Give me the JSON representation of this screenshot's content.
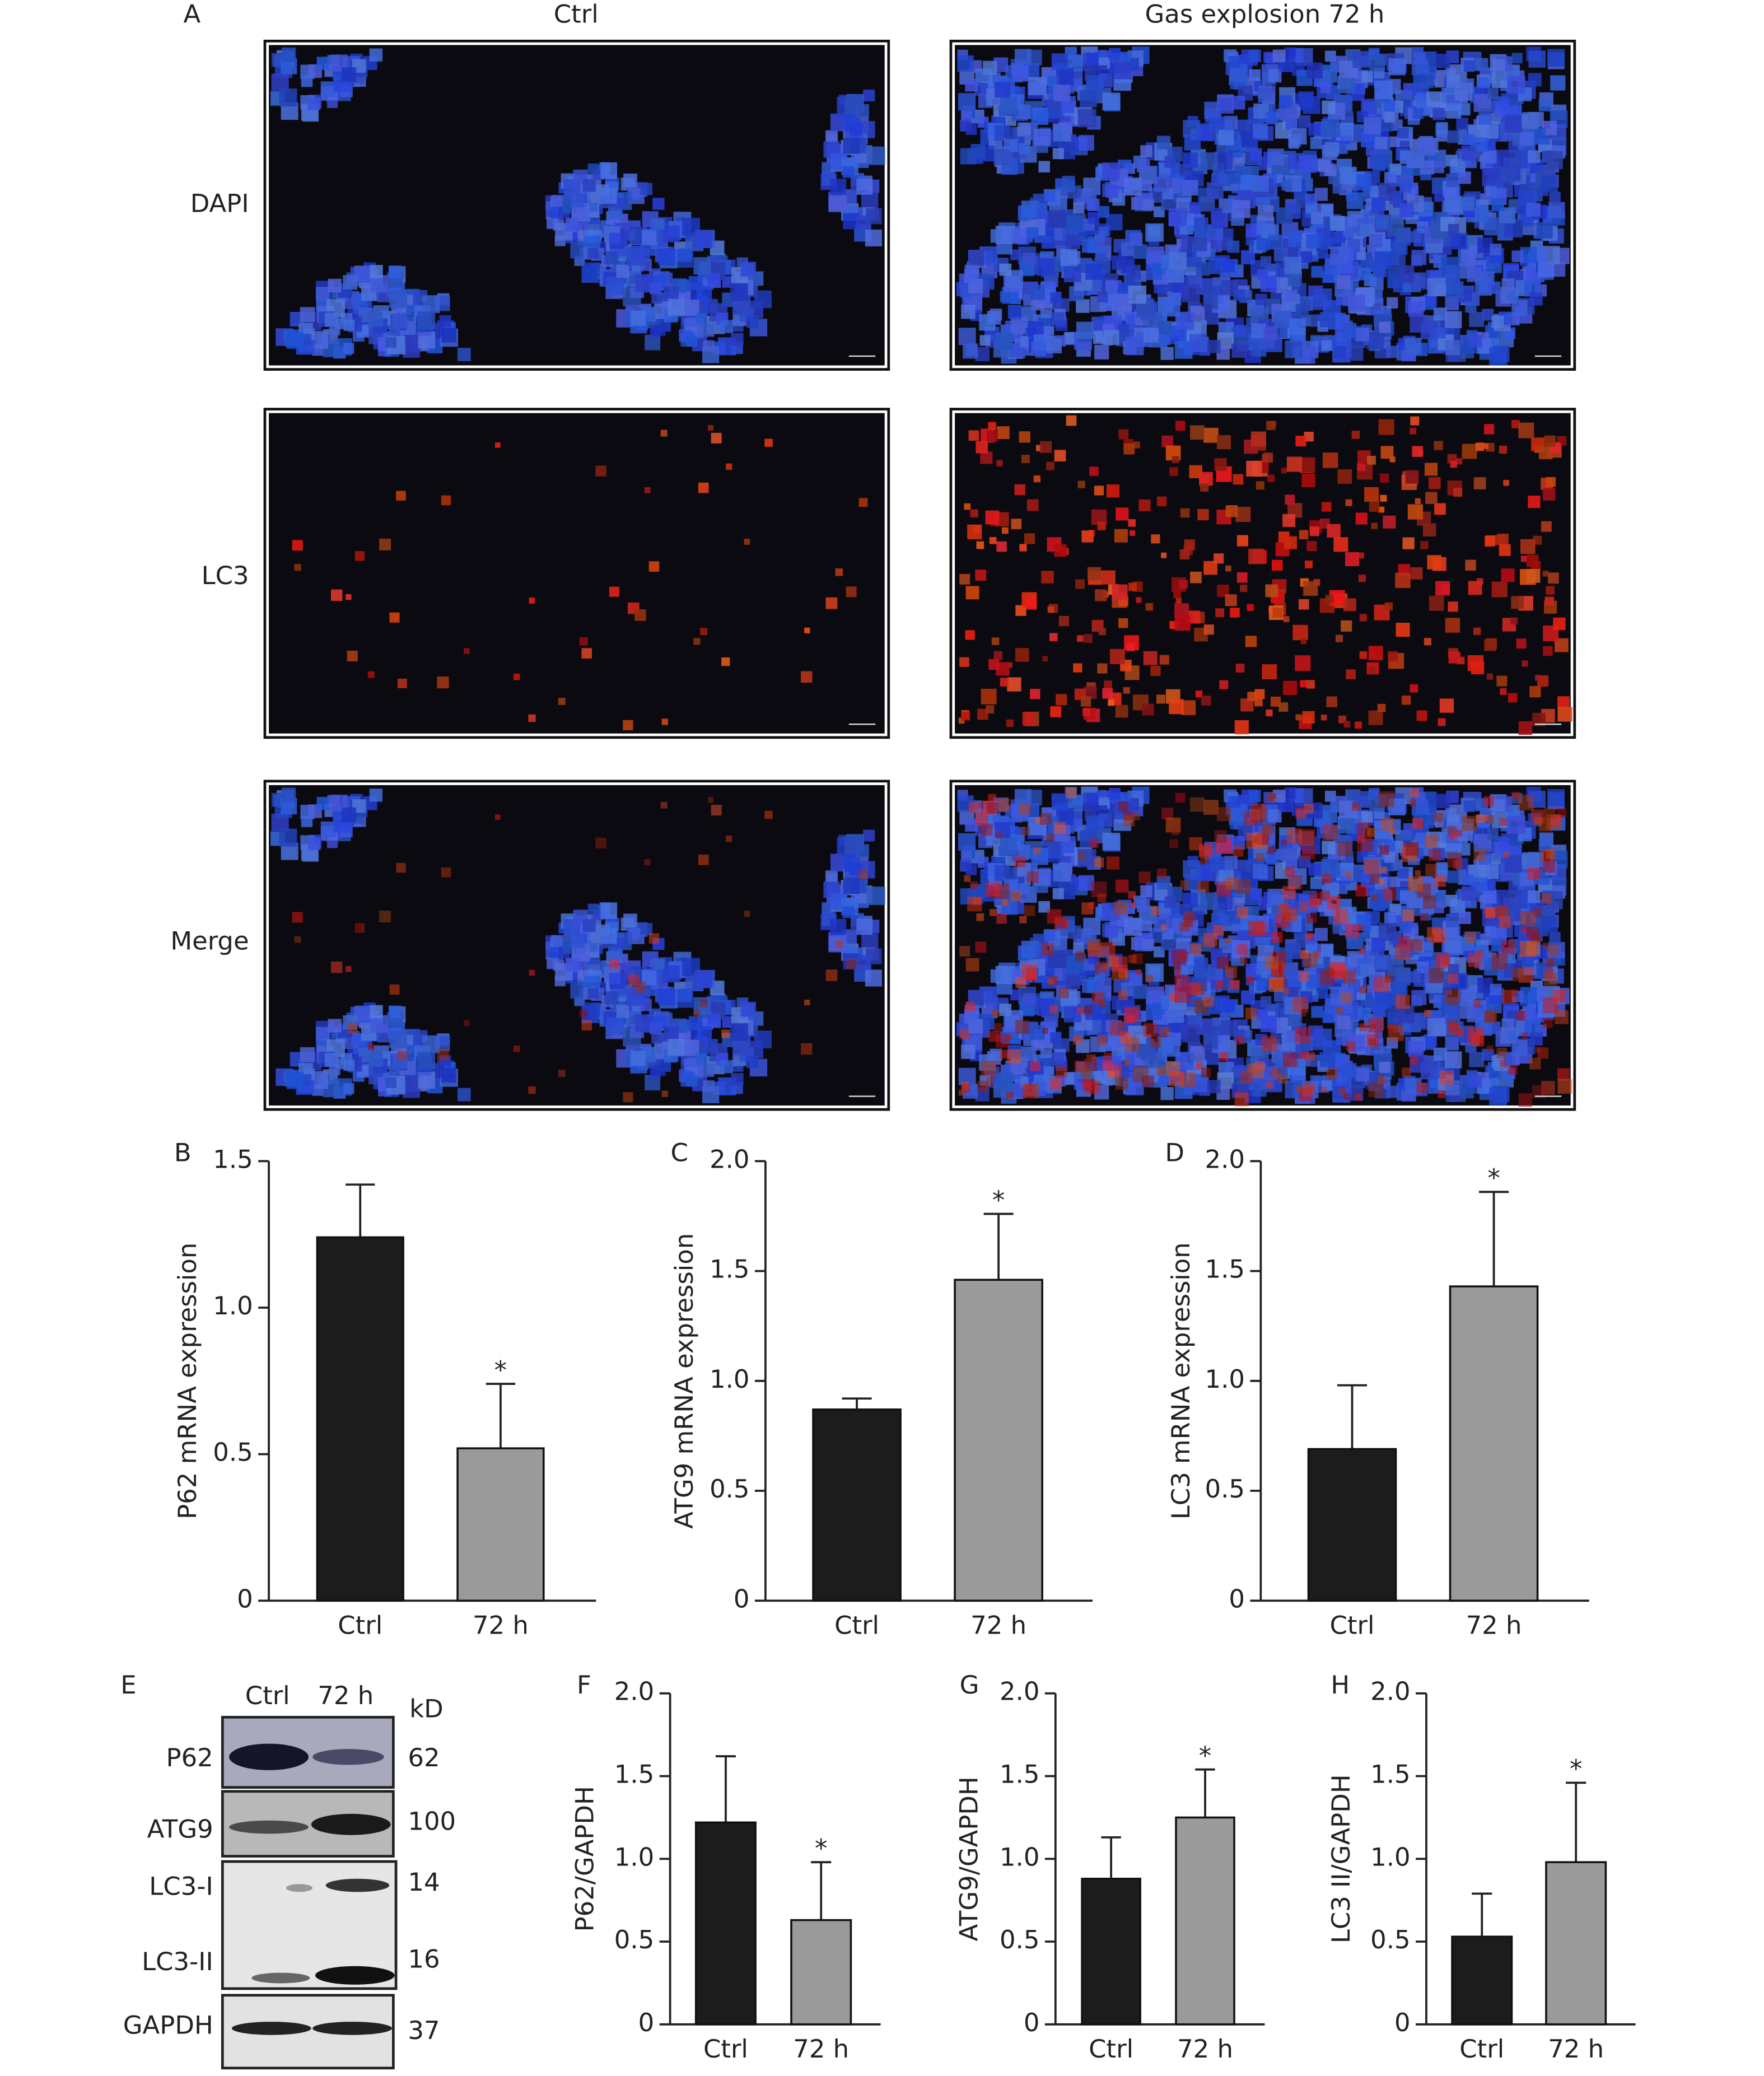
{
  "panel_a": {
    "label": "A",
    "columns": [
      "Ctrl",
      "Gas explosion 72 h"
    ],
    "rows": [
      "DAPI",
      "LC3",
      "Merge"
    ]
  },
  "panel_e": {
    "label": "E",
    "lanes": [
      "Ctrl",
      "72 h"
    ],
    "unit": "kD",
    "bands": [
      {
        "name": "P62",
        "size": 62
      },
      {
        "name": "ATG9",
        "size": 100
      },
      {
        "name": "LC3-I",
        "size": 14
      },
      {
        "name": "LC3-II",
        "size": 16
      },
      {
        "name": "GAPDH",
        "size": 37
      }
    ]
  },
  "chart_data": [
    {
      "type": "bar",
      "panel": "B",
      "ylabel": "P62 mRNA expression",
      "categories": [
        "Ctrl",
        "72 h"
      ],
      "values": [
        1.24,
        0.52
      ],
      "errors": [
        0.18,
        0.22
      ],
      "colors": [
        "#1c1c1c",
        "#9a9a9a"
      ],
      "ylim": [
        0,
        1.5
      ],
      "yticks": [
        0,
        0.5,
        {
          "value": 1,
          "label": "1.0"
        },
        1.5
      ],
      "annotations": [
        {
          "index": 1,
          "text": "*"
        }
      ]
    },
    {
      "type": "bar",
      "panel": "C",
      "ylabel": "ATG9 mRNA expression",
      "categories": [
        "Ctrl",
        "72 h"
      ],
      "values": [
        0.87,
        1.46
      ],
      "errors": [
        0.05,
        0.3
      ],
      "colors": [
        "#1c1c1c",
        "#9a9a9a"
      ],
      "ylim": [
        0,
        2
      ],
      "yticks": [
        0,
        0.5,
        {
          "value": 1,
          "label": "1.0"
        },
        1.5,
        {
          "value": 2,
          "label": "2.0"
        }
      ],
      "annotations": [
        {
          "index": 1,
          "text": "*"
        }
      ]
    },
    {
      "type": "bar",
      "panel": "D",
      "ylabel": "LC3 mRNA expression",
      "categories": [
        "Ctrl",
        "72 h"
      ],
      "values": [
        0.69,
        1.43
      ],
      "errors": [
        0.29,
        0.43
      ],
      "colors": [
        "#1c1c1c",
        "#9a9a9a"
      ],
      "ylim": [
        0,
        2
      ],
      "yticks": [
        0,
        0.5,
        {
          "value": 1,
          "label": "1.0"
        },
        1.5,
        {
          "value": 2,
          "label": "2.0"
        }
      ],
      "annotations": [
        {
          "index": 1,
          "text": "*"
        }
      ]
    },
    {
      "type": "bar",
      "panel": "F",
      "ylabel": "P62/GAPDH",
      "categories": [
        "Ctrl",
        "72 h"
      ],
      "values": [
        1.22,
        0.63
      ],
      "errors": [
        0.4,
        0.35
      ],
      "colors": [
        "#1c1c1c",
        "#9a9a9a"
      ],
      "ylim": [
        0,
        2
      ],
      "yticks": [
        0,
        0.5,
        {
          "value": 1,
          "label": "1.0"
        },
        1.5,
        {
          "value": 2,
          "label": "2.0"
        }
      ],
      "annotations": [
        {
          "index": 1,
          "text": "*"
        }
      ]
    },
    {
      "type": "bar",
      "panel": "G",
      "ylabel": "ATG9/GAPDH",
      "categories": [
        "Ctrl",
        "72 h"
      ],
      "values": [
        0.88,
        1.25
      ],
      "errors": [
        0.25,
        0.29
      ],
      "colors": [
        "#1c1c1c",
        "#9a9a9a"
      ],
      "ylim": [
        0,
        2
      ],
      "yticks": [
        0,
        0.5,
        {
          "value": 1,
          "label": "1.0"
        },
        1.5,
        {
          "value": 2,
          "label": "2.0"
        }
      ],
      "annotations": [
        {
          "index": 1,
          "text": "*"
        }
      ]
    },
    {
      "type": "bar",
      "panel": "H",
      "ylabel": "LC3 II/GAPDH",
      "categories": [
        "Ctrl",
        "72 h"
      ],
      "values": [
        0.53,
        0.98
      ],
      "errors": [
        0.26,
        0.48
      ],
      "colors": [
        "#1c1c1c",
        "#9a9a9a"
      ],
      "ylim": [
        0,
        2
      ],
      "yticks": [
        0,
        0.5,
        {
          "value": 1,
          "label": "1.0"
        },
        1.5,
        {
          "value": 2,
          "label": "2.0"
        }
      ],
      "annotations": [
        {
          "index": 1,
          "text": "*"
        }
      ]
    }
  ]
}
